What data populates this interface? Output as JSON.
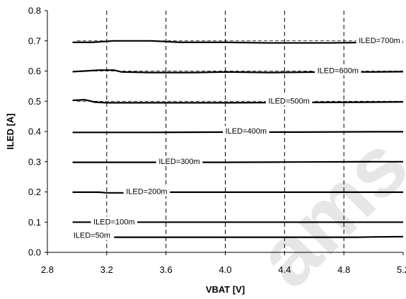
{
  "chart_data": {
    "type": "line",
    "xlabel": "VBAT [V]",
    "ylabel": "ILED [A]",
    "xlim": [
      2.8,
      5.2
    ],
    "ylim": [
      0.0,
      0.8
    ],
    "x_ticks": [
      "2.8",
      "3.2",
      "3.6",
      "4.0",
      "4.4",
      "4.8",
      "5.2"
    ],
    "y_ticks": [
      "0.0",
      "0.1",
      "0.2",
      "0.3",
      "0.4",
      "0.5",
      "0.6",
      "0.7",
      "0.8"
    ],
    "grid": {
      "vertical": true,
      "horizontal": false,
      "style": "dashed"
    },
    "reference_lines": [
      0.7,
      0.6,
      0.5
    ],
    "series": [
      {
        "name": "ILED=700m",
        "x": [
          2.97,
          3.1,
          3.25,
          3.5,
          3.7,
          4.0,
          4.3,
          4.7,
          5.0,
          5.2
        ],
        "y": [
          0.695,
          0.695,
          0.7,
          0.7,
          0.695,
          0.695,
          0.693,
          0.693,
          0.695,
          0.695
        ]
      },
      {
        "name": "ILED=600m",
        "x": [
          2.97,
          3.05,
          3.15,
          3.25,
          3.3,
          3.5,
          3.8,
          4.0,
          4.3,
          4.7,
          5.0,
          5.2
        ],
        "y": [
          0.598,
          0.6,
          0.603,
          0.603,
          0.597,
          0.595,
          0.595,
          0.597,
          0.595,
          0.597,
          0.597,
          0.598
        ]
      },
      {
        "name": "ILED=500m",
        "x": [
          2.97,
          3.05,
          3.08,
          3.12,
          3.2,
          3.5,
          4.0,
          4.5,
          5.0,
          5.2
        ],
        "y": [
          0.503,
          0.505,
          0.502,
          0.497,
          0.495,
          0.495,
          0.495,
          0.496,
          0.497,
          0.498
        ]
      },
      {
        "name": "ILED=400m",
        "x": [
          2.97,
          3.5,
          4.0,
          4.5,
          5.0,
          5.2
        ],
        "y": [
          0.397,
          0.397,
          0.398,
          0.398,
          0.399,
          0.399
        ]
      },
      {
        "name": "ILED=300m",
        "x": [
          2.97,
          3.5,
          4.0,
          4.5,
          5.0,
          5.2
        ],
        "y": [
          0.298,
          0.298,
          0.298,
          0.299,
          0.3,
          0.3
        ]
      },
      {
        "name": "ILED=200m",
        "x": [
          2.97,
          3.15,
          3.2,
          3.4,
          3.6,
          4.0,
          4.5,
          5.0,
          5.2
        ],
        "y": [
          0.199,
          0.199,
          0.197,
          0.197,
          0.199,
          0.199,
          0.199,
          0.199,
          0.199
        ]
      },
      {
        "name": "ILED=100m",
        "x": [
          2.97,
          3.1,
          3.5,
          4.0,
          4.5,
          5.0,
          5.2
        ],
        "y": [
          0.1,
          0.1,
          0.1,
          0.1,
          0.1,
          0.1,
          0.1
        ]
      },
      {
        "name": "ILED=50m",
        "x": [
          3.25,
          3.5,
          4.0,
          4.5,
          4.9,
          5.0,
          5.2
        ],
        "y": [
          0.05,
          0.05,
          0.05,
          0.05,
          0.05,
          0.051,
          0.052
        ]
      }
    ],
    "series_labels": [
      {
        "text": "ILED=700m",
        "x": 5.04,
        "y": 0.7
      },
      {
        "text": "ILED=600m",
        "x": 4.76,
        "y": 0.6
      },
      {
        "text": "ILED=500m",
        "x": 4.43,
        "y": 0.5
      },
      {
        "text": "ILED=400m",
        "x": 4.14,
        "y": 0.4
      },
      {
        "text": "ILED=300m",
        "x": 3.69,
        "y": 0.3
      },
      {
        "text": "ILED=200m",
        "x": 3.47,
        "y": 0.2
      },
      {
        "text": "ILED=100m",
        "x": 3.25,
        "y": 0.1
      },
      {
        "text": "ILED=50m",
        "x": 3.1,
        "y": 0.055
      }
    ],
    "watermark": "ams"
  },
  "colors": {
    "line": "#000000",
    "grid": "#000000",
    "watermark": "#e6e6e6"
  }
}
